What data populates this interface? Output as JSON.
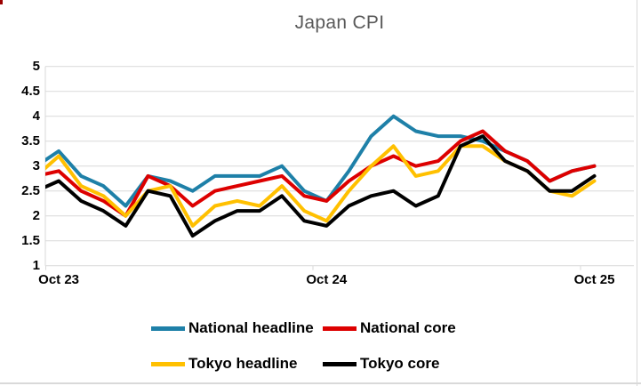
{
  "window": {
    "background": "#ffffff",
    "border_color": "#d9d9d9"
  },
  "chart_data": {
    "type": "line",
    "title": "Japan CPI",
    "title_color": "#595959",
    "grid": "horizontal",
    "grid_color": "#d9d9d9",
    "legend_position": "bottom",
    "ylim": [
      1,
      5
    ],
    "y_ticks": [
      5,
      4.5,
      4,
      3.5,
      3,
      2.5,
      2,
      1.5,
      1
    ],
    "x": [
      "Sep-23",
      "Oct-23",
      "Nov-23",
      "Dec-23",
      "Jan-24",
      "Feb-24",
      "Mar-24",
      "Apr-24",
      "May-24",
      "Jun-24",
      "Jul-24",
      "Aug-24",
      "Sep-24",
      "Oct-24",
      "Nov-24",
      "Dec-24",
      "Jan-25",
      "Feb-25",
      "Mar-25",
      "Apr-25",
      "May-25",
      "Jun-25",
      "Jul-25",
      "Aug-25",
      "Sep-25",
      "Oct-25"
    ],
    "x_tick_labels": [
      {
        "index": 1,
        "label": "Oct 23"
      },
      {
        "index": 13,
        "label": "Oct 24"
      },
      {
        "index": 25,
        "label": "Oct 25"
      }
    ],
    "series": [
      {
        "name": "National headline",
        "color": "#1e80a8",
        "values": [
          3.0,
          3.3,
          2.8,
          2.6,
          2.2,
          2.8,
          2.7,
          2.5,
          2.8,
          2.8,
          2.8,
          3.0,
          2.5,
          2.3,
          2.9,
          3.6,
          4.0,
          3.7,
          3.6,
          3.6,
          3.5,
          3.3,
          3.1,
          2.7,
          2.9,
          3.0
        ]
      },
      {
        "name": "National core",
        "color": "#dd0000",
        "values": [
          2.8,
          2.9,
          2.5,
          2.3,
          2.0,
          2.8,
          2.6,
          2.2,
          2.5,
          2.6,
          2.7,
          2.8,
          2.4,
          2.3,
          2.7,
          3.0,
          3.2,
          3.0,
          3.1,
          3.5,
          3.7,
          3.3,
          3.1,
          2.7,
          2.9,
          3.0
        ]
      },
      {
        "name": "Tokyo headline",
        "color": "#ffc000",
        "values": [
          2.8,
          3.2,
          2.6,
          2.4,
          2.0,
          2.5,
          2.6,
          1.8,
          2.2,
          2.3,
          2.2,
          2.6,
          2.1,
          1.9,
          2.5,
          3.0,
          3.4,
          2.8,
          2.9,
          3.4,
          3.4,
          3.1,
          2.9,
          2.5,
          2.4,
          2.7
        ]
      },
      {
        "name": "Tokyo core",
        "color": "#000000",
        "values": [
          2.5,
          2.7,
          2.3,
          2.1,
          1.8,
          2.5,
          2.4,
          1.6,
          1.9,
          2.1,
          2.1,
          2.4,
          1.9,
          1.8,
          2.2,
          2.4,
          2.5,
          2.2,
          2.4,
          3.4,
          3.6,
          3.1,
          2.9,
          2.5,
          2.5,
          2.8
        ]
      }
    ]
  }
}
